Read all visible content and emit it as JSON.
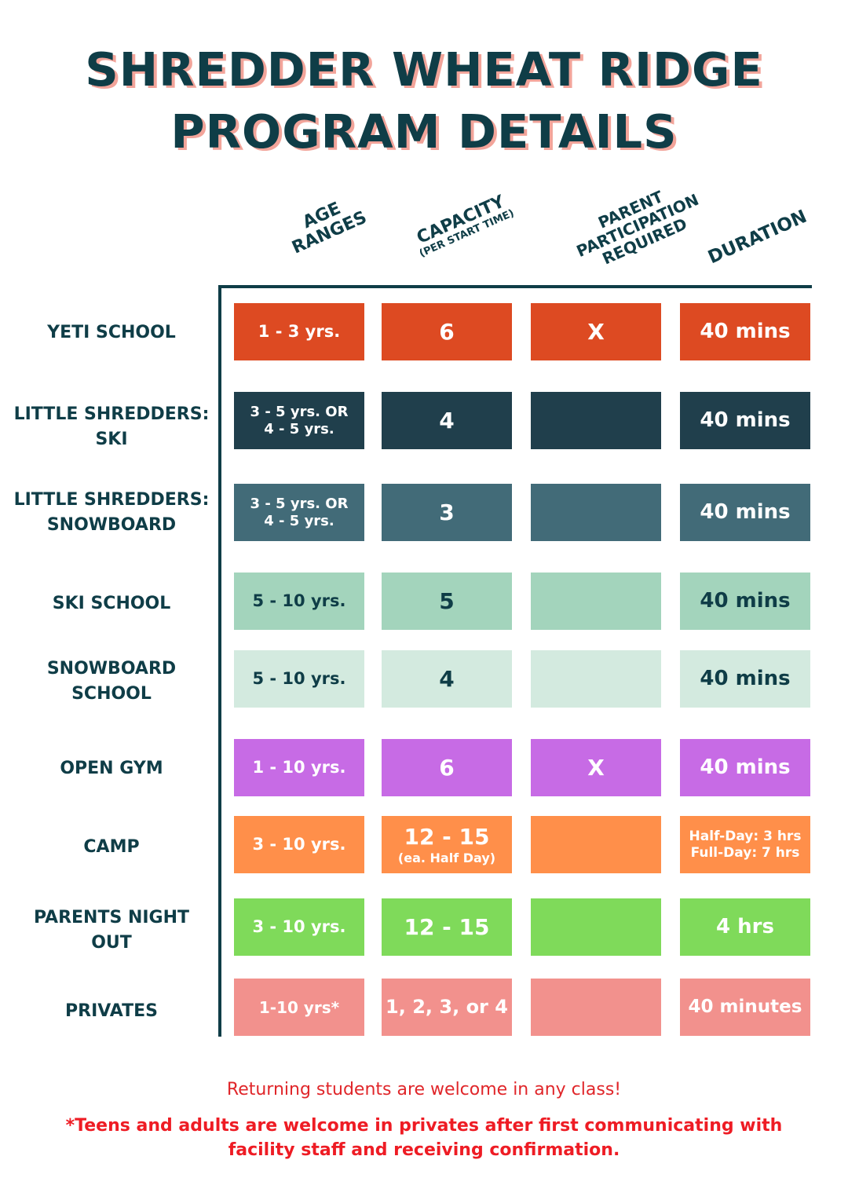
{
  "title_line1": "SHREDDER WHEAT RIDGE",
  "title_line2": "PROGRAM DETAILS",
  "columns": {
    "age": [
      "AGE",
      "RANGES"
    ],
    "capacity": [
      "CAPACITY",
      "(PER START TIME)"
    ],
    "parent": [
      "PARENT",
      "PARTICIPATION",
      "REQUIRED"
    ],
    "duration": [
      "DURATION"
    ]
  },
  "colors": {
    "navy": "#0f3d47",
    "accent_shadow": "#f2a49a",
    "footer_red": "#ee1c24"
  },
  "rows": [
    {
      "label1": "YETI SCHOOL",
      "label2": "",
      "age": "1 - 3 yrs.",
      "age2": "",
      "capacity": "6",
      "capacity_sub": "",
      "parent": "X",
      "duration": "40 mins",
      "duration2": "",
      "bg": "#dd4a22",
      "fg": "#ffffff"
    },
    {
      "label1": "LITTLE SHREDDERS:",
      "label2": "SKI",
      "age": "3 - 5 yrs. OR",
      "age2": "4 - 5 yrs.",
      "capacity": "4",
      "capacity_sub": "",
      "parent": "",
      "duration": "40 mins",
      "duration2": "",
      "bg": "#203f4c",
      "fg": "#ffffff"
    },
    {
      "label1": "LITTLE SHREDDERS:",
      "label2": "SNOWBOARD",
      "age": "3 - 5 yrs. OR",
      "age2": "4 - 5 yrs.",
      "capacity": "3",
      "capacity_sub": "",
      "parent": "",
      "duration": "40 mins",
      "duration2": "",
      "bg": "#426b78",
      "fg": "#ffffff"
    },
    {
      "label1": "SKI SCHOOL",
      "label2": "",
      "age": "5 - 10 yrs.",
      "age2": "",
      "capacity": "5",
      "capacity_sub": "",
      "parent": "",
      "duration": "40 mins",
      "duration2": "",
      "bg": "#a3d4bc",
      "fg": "#0f3d47"
    },
    {
      "label1": "SNOWBOARD",
      "label2": "SCHOOL",
      "age": "5 - 10 yrs.",
      "age2": "",
      "capacity": "4",
      "capacity_sub": "",
      "parent": "",
      "duration": "40 mins",
      "duration2": "",
      "bg": "#d3eadf",
      "fg": "#0f3d47"
    },
    {
      "label1": "OPEN GYM",
      "label2": "",
      "age": "1 - 10 yrs.",
      "age2": "",
      "capacity": "6",
      "capacity_sub": "",
      "parent": "X",
      "duration": "40 mins",
      "duration2": "",
      "bg": "#c76be5",
      "fg": "#ffffff"
    },
    {
      "label1": "CAMP",
      "label2": "",
      "age": "3 - 10 yrs.",
      "age2": "",
      "capacity": "12 - 15",
      "capacity_sub": "(ea. Half Day)",
      "parent": "",
      "duration": "Half-Day: 3 hrs",
      "duration2": "Full-Day: 7 hrs",
      "bg": "#ff8f4a",
      "fg": "#ffffff"
    },
    {
      "label1": "PARENTS NIGHT",
      "label2": "OUT",
      "age": "3 - 10 yrs.",
      "age2": "",
      "capacity": "12 - 15",
      "capacity_sub": "",
      "parent": "",
      "duration": "4 hrs",
      "duration2": "",
      "bg": "#7fda5a",
      "fg": "#ffffff"
    },
    {
      "label1": "PRIVATES",
      "label2": "",
      "age": "1-10 yrs*",
      "age2": "",
      "capacity": "1, 2, 3, or 4",
      "capacity_sub": "",
      "parent": "",
      "duration": "40 minutes",
      "duration2": "",
      "bg": "#f2918d",
      "fg": "#ffffff"
    }
  ],
  "footer_line1": "Returning students are welcome in any class!",
  "footer_line2": "*Teens and adults are welcome in privates after first communicating with facility staff and receiving confirmation."
}
